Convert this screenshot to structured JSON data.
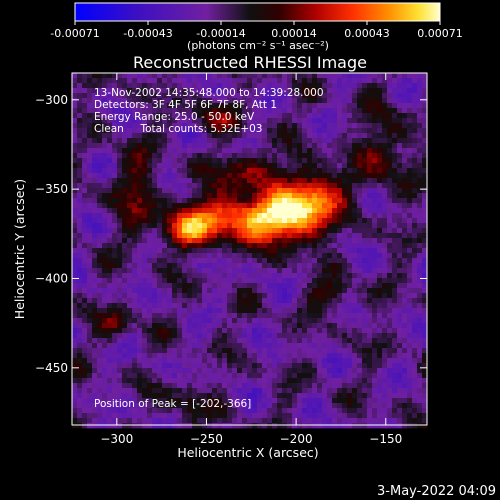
{
  "chart_data": {
    "type": "heatmap",
    "title": "Reconstructed RHESSI Image",
    "xlabel": "Heliocentric X (arcsec)",
    "ylabel": "Heliocentric Y (arcsec)",
    "xlim": [
      -325,
      -127
    ],
    "ylim": [
      -482,
      -285
    ],
    "xticks": [
      -300,
      -250,
      -200,
      -150
    ],
    "yticks": [
      -300,
      -350,
      -400,
      -450
    ],
    "colorbar": {
      "label": "(photons cm⁻² s⁻¹ asec⁻²)",
      "range": [
        -0.00071,
        0.00071
      ],
      "ticks": [
        "-0.00071",
        "-0.00043",
        "-0.00014",
        "0.00014",
        "0.00043",
        "0.00071"
      ]
    },
    "peak": {
      "x": -202,
      "y": -366
    },
    "sources": [
      {
        "x": -232,
        "y": -366,
        "sx": 22,
        "sy": 9,
        "amp": 0.0007
      },
      {
        "x": -202,
        "y": -366,
        "sx": 12,
        "sy": 10,
        "amp": 0.00066
      },
      {
        "x": -188,
        "y": -352,
        "sx": 10,
        "sy": 9,
        "amp": 0.00055
      },
      {
        "x": -262,
        "y": -374,
        "sx": 10,
        "sy": 7,
        "amp": 0.0004
      },
      {
        "x": -225,
        "y": -340,
        "sx": 14,
        "sy": 7,
        "amp": 0.00035
      },
      {
        "x": -290,
        "y": -350,
        "sx": 8,
        "sy": 16,
        "amp": 0.00028
      },
      {
        "x": -150,
        "y": -330,
        "sx": 10,
        "sy": 16,
        "amp": 0.00028
      },
      {
        "x": -180,
        "y": -410,
        "sx": 8,
        "sy": 6,
        "amp": 0.00028
      },
      {
        "x": -300,
        "y": -425,
        "sx": 7,
        "sy": 6,
        "amp": 0.00025
      },
      {
        "x": -245,
        "y": -310,
        "sx": 12,
        "sy": 6,
        "amp": 0.00022
      },
      {
        "x": -260,
        "y": -470,
        "sx": 6,
        "sy": 8,
        "amp": 0.00024
      }
    ],
    "annotations": [
      "13-Nov-2002 14:35:48.000 to 14:39:28.000",
      "Detectors: 3F 4F 5F 6F 7F 8F, Att 1",
      "Energy Range: 25.0 - 50.0 keV",
      "Clean     Total counts: 5.32E+03"
    ],
    "peak_label": "Position of Peak = [-202,-366]"
  },
  "footer": {
    "date": "3-May-2022 04:09"
  }
}
